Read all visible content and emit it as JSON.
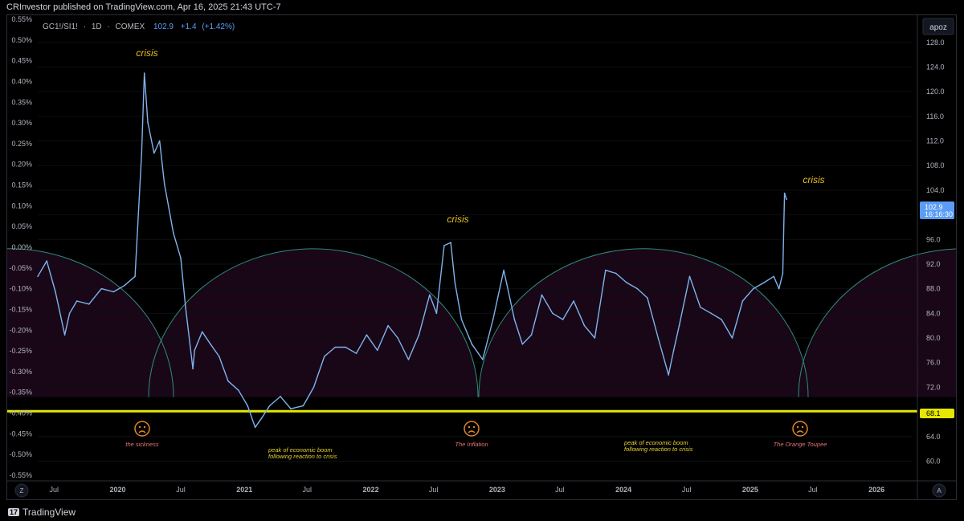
{
  "header": {
    "publisher_line": "CRInvestor published on TradingView.com, Apr 16, 2025 21:43 UTC-7"
  },
  "symbol": {
    "name": "GC1!/SI1!",
    "interval": "1D",
    "exchange": "COMEX",
    "separator": "·",
    "last": "102.9",
    "change": "+1.4",
    "change_pct": "(+1.42%)"
  },
  "price_label": {
    "value": "102.9",
    "countdown": "16:16:30",
    "color": "#5b9cf6"
  },
  "hline_label": {
    "value": "68.1",
    "color": "#e6e600"
  },
  "top_right_label": "apoz",
  "corner_labels": {
    "left": "Z",
    "right": "A"
  },
  "footer": {
    "logo_text": "TradingView"
  },
  "colors": {
    "line": "#7fb3ee",
    "hline": "#e6e600",
    "arc": "#2f8c7e",
    "fill": "#190717",
    "crisis": "#e8c21e",
    "annotation_red": "#e57373",
    "annotation_yellow": "#e6d230",
    "sad_face": "#e0852a"
  },
  "chart_data": {
    "type": "line",
    "title": "",
    "left_axis": {
      "ticks": [
        "0.55%",
        "0.50%",
        "0.45%",
        "0.40%",
        "0.35%",
        "0.30%",
        "0.25%",
        "0.20%",
        "0.15%",
        "0.10%",
        "0.05%",
        "0.00%",
        "-0.05%",
        "-0.10%",
        "-0.15%",
        "-0.20%",
        "-0.25%",
        "-0.30%",
        "-0.35%",
        "-0.40%",
        "-0.45%",
        "-0.50%",
        "-0.55%"
      ]
    },
    "right_axis": {
      "ticks": [
        "128.0",
        "124.0",
        "120.0",
        "116.0",
        "112.0",
        "108.0",
        "104.0",
        "100.0",
        "96.0",
        "92.0",
        "88.0",
        "84.0",
        "80.0",
        "76.0",
        "72.0",
        "68.0",
        "64.0",
        "60.0"
      ],
      "ylim": [
        56.8,
        132.4
      ]
    },
    "x_axis": {
      "ticks": [
        "Jul",
        "2020",
        "Jul",
        "2021",
        "Jul",
        "2022",
        "Jul",
        "2023",
        "Jul",
        "2024",
        "Jul",
        "2025",
        "Jul",
        "2026"
      ],
      "xlim": [
        "2019-05-15",
        "2026-04-15"
      ]
    },
    "horizontal_line": 68.1,
    "series": [
      {
        "x": [
          "2019-05-15",
          "2019-06-10",
          "2019-07-05",
          "2019-08-01",
          "2019-08-15",
          "2019-09-05",
          "2019-10-10",
          "2019-11-15",
          "2019-12-20",
          "2020-01-20",
          "2020-02-20",
          "2020-03-10",
          "2020-03-18",
          "2020-03-28",
          "2020-04-15",
          "2020-05-01",
          "2020-05-15",
          "2020-06-10",
          "2020-07-01",
          "2020-07-15",
          "2020-08-05",
          "2020-08-10",
          "2020-09-01",
          "2020-09-25",
          "2020-10-20",
          "2020-11-15",
          "2020-12-15",
          "2021-01-10",
          "2021-02-01",
          "2021-02-20",
          "2021-03-15",
          "2021-04-15",
          "2021-05-15",
          "2021-06-20",
          "2021-07-20",
          "2021-08-20",
          "2021-09-20",
          "2021-10-20",
          "2021-11-20",
          "2021-12-20",
          "2022-01-20",
          "2022-02-20",
          "2022-03-20",
          "2022-04-20",
          "2022-05-20",
          "2022-06-20",
          "2022-07-10",
          "2022-08-01",
          "2022-08-20",
          "2022-09-01",
          "2022-09-20",
          "2022-10-20",
          "2022-11-20",
          "2022-12-20",
          "2023-01-20",
          "2023-02-20",
          "2023-03-15",
          "2023-04-10",
          "2023-05-10",
          "2023-06-10",
          "2023-07-10",
          "2023-08-10",
          "2023-09-10",
          "2023-10-10",
          "2023-11-10",
          "2023-12-10",
          "2024-01-10",
          "2024-02-10",
          "2024-03-10",
          "2024-04-10",
          "2024-05-10",
          "2024-05-25",
          "2024-06-10",
          "2024-07-10",
          "2024-08-10",
          "2024-09-10",
          "2024-10-10",
          "2024-11-10",
          "2024-12-10",
          "2025-01-10",
          "2025-02-10",
          "2025-03-10",
          "2025-03-25",
          "2025-04-05",
          "2025-04-10",
          "2025-04-16"
        ],
        "values": [
          90,
          92.5,
          87.5,
          80.5,
          84,
          86,
          85.5,
          88,
          87.5,
          88.5,
          90,
          110,
          123,
          115,
          110,
          112,
          105,
          97,
          93,
          85,
          75,
          78,
          81,
          79,
          77,
          73,
          71.5,
          69,
          65.5,
          67,
          69,
          70.5,
          68.5,
          69,
          72,
          77,
          78.5,
          78.5,
          77.5,
          80.5,
          78,
          82,
          80,
          76.5,
          80.5,
          87,
          84,
          95,
          95.5,
          89,
          83,
          79,
          76.5,
          83,
          91,
          83,
          79,
          80.5,
          87,
          84,
          83,
          86,
          82,
          80,
          91,
          90.5,
          89,
          88,
          86.5,
          80,
          74,
          78,
          82,
          90,
          85,
          84,
          83,
          80,
          86,
          88,
          89,
          90,
          88,
          90.5,
          103.5,
          102.5
        ]
      }
    ]
  },
  "annotations": {
    "crisis_1": "crisis",
    "crisis_2": "crisis",
    "crisis_3": "crisis",
    "face_1_caption": "the sickness",
    "face_2_caption": "The Inflation",
    "face_3_caption": "The  Orange Toupee",
    "boom_1_line1": "peak of economic boom",
    "boom_1_line2": "following reaction to crisis",
    "boom_2_line1": "peak of economic boom",
    "boom_2_line2": "following reaction to crisis",
    "sad_face_icon": "sad-face-icon"
  }
}
